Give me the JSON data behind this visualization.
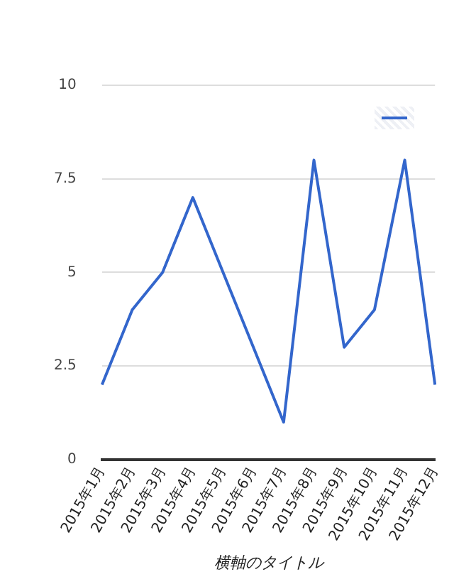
{
  "chart_data": {
    "type": "line",
    "xlabel": "横軸のタイトル",
    "categories": [
      "2015年1月",
      "2015年2月",
      "2015年3月",
      "2015年4月",
      "2015年5月",
      "2015年6月",
      "2015年7月",
      "2015年8月",
      "2015年9月",
      "2015年10月",
      "2015年11月",
      "2015年12月"
    ],
    "series": [
      {
        "color": "#3366cc",
        "values": [
          2,
          4,
          5,
          7,
          5,
          3,
          1,
          8,
          3,
          4,
          8,
          2
        ]
      }
    ],
    "ylim": [
      0,
      10
    ],
    "yticks": [
      0,
      {
        "value": 2.5,
        "label": "2.5"
      },
      5,
      {
        "value": 7.5,
        "label": "7.5"
      },
      10
    ],
    "grid": "y",
    "marker": "none",
    "line_style": "solid"
  }
}
